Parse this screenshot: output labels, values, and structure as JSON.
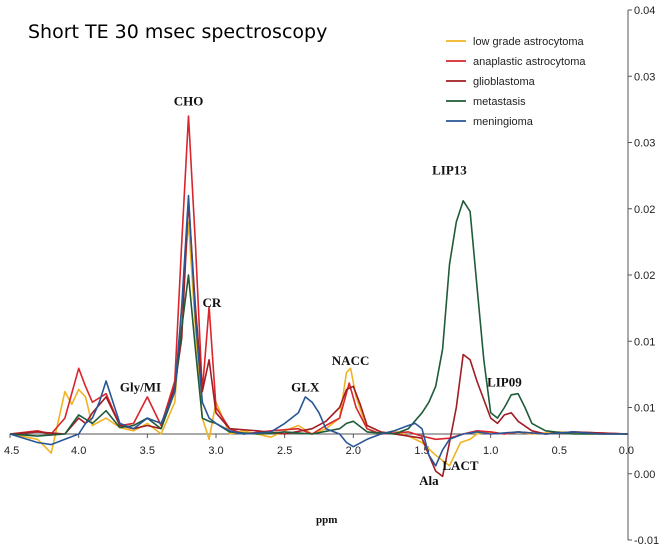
{
  "chart_data": {
    "type": "line",
    "title": "Short TE 30 msec spectroscopy",
    "xlabel": "ppm",
    "ylabel": "",
    "x_reversed": true,
    "xlim": [
      4.5,
      0.0
    ],
    "ylim": [
      -0.01,
      0.04
    ],
    "x_tick_labels": [
      "4.5",
      "4.0",
      "3.5",
      "3.0",
      "2.5",
      "2.0",
      "1.5",
      "1.0",
      "0.5",
      "0.0"
    ],
    "y_tick_labels": [
      "0.04",
      "0.03",
      "0.03",
      "0.02",
      "0.02",
      "0.01",
      "0.01",
      "0.00",
      "-0.01"
    ],
    "legend_position": "top-right",
    "grid": false,
    "peak_labels": [
      {
        "text": "CHO",
        "ppm": 3.2,
        "value": 0.031
      },
      {
        "text": "CR",
        "ppm": 3.03,
        "value": 0.012
      },
      {
        "text": "Gly/MI",
        "ppm": 3.55,
        "value": 0.004
      },
      {
        "text": "GLX",
        "ppm": 2.35,
        "value": 0.004
      },
      {
        "text": "NACC",
        "ppm": 2.02,
        "value": 0.0065
      },
      {
        "text": "LIP13",
        "ppm": 1.3,
        "value": 0.0245
      },
      {
        "text": "LIP09",
        "ppm": 0.9,
        "value": 0.0045
      },
      {
        "text": "Ala",
        "ppm": 1.45,
        "value": -0.0048
      },
      {
        "text": "LACT",
        "ppm": 1.22,
        "value": -0.0034
      }
    ],
    "series": [
      {
        "name": "low grade astrocytoma",
        "color": "#f0b323",
        "x": [
          4.5,
          4.3,
          4.2,
          4.1,
          4.05,
          4.0,
          3.95,
          3.9,
          3.8,
          3.7,
          3.6,
          3.5,
          3.4,
          3.3,
          3.25,
          3.2,
          3.15,
          3.1,
          3.05,
          3.0,
          2.9,
          2.8,
          2.6,
          2.5,
          2.4,
          2.3,
          2.2,
          2.1,
          2.05,
          2.02,
          1.98,
          1.9,
          1.8,
          1.7,
          1.6,
          1.5,
          1.4,
          1.3,
          1.22,
          1.15,
          1.1,
          1.0,
          0.9,
          0.8,
          0.7,
          0.5,
          0.3,
          0.0
        ],
        "y": [
          0.0,
          -0.0005,
          -0.0018,
          0.004,
          0.0028,
          0.0042,
          0.0035,
          0.0008,
          0.0015,
          0.0006,
          0.0003,
          0.001,
          0.0,
          0.003,
          0.012,
          0.02,
          0.01,
          0.0015,
          -0.0005,
          0.003,
          0.0,
          0.0003,
          -0.0003,
          0.0003,
          0.0008,
          0.0,
          0.0005,
          0.0015,
          0.0058,
          0.0062,
          0.0035,
          0.0005,
          0.0,
          0.0003,
          -0.0002,
          -0.0008,
          -0.002,
          -0.003,
          -0.0008,
          -0.0005,
          0.0,
          0.0002,
          0.0,
          0.0002,
          0.0,
          0.0002,
          0.0,
          0.0
        ]
      },
      {
        "name": "anaplastic astrocytoma",
        "color": "#d8262c",
        "x": [
          4.5,
          4.3,
          4.2,
          4.1,
          4.0,
          3.95,
          3.9,
          3.8,
          3.7,
          3.6,
          3.5,
          3.4,
          3.3,
          3.25,
          3.2,
          3.15,
          3.1,
          3.05,
          3.0,
          2.9,
          2.8,
          2.6,
          2.4,
          2.3,
          2.2,
          2.1,
          2.03,
          1.98,
          1.9,
          1.8,
          1.6,
          1.5,
          1.4,
          1.3,
          1.25,
          1.2,
          1.1,
          1.0,
          0.9,
          0.8,
          0.6,
          0.4,
          0.0
        ],
        "y": [
          0.0,
          0.0003,
          0.0,
          0.0015,
          0.0062,
          0.0045,
          0.003,
          0.0038,
          0.0008,
          0.001,
          0.0035,
          0.0008,
          0.005,
          0.018,
          0.03,
          0.018,
          0.004,
          0.012,
          0.0025,
          0.0005,
          0.0,
          0.0003,
          0.0005,
          0.0,
          0.0008,
          0.0015,
          0.0048,
          0.0025,
          0.0005,
          0.0,
          0.0002,
          -0.0002,
          -0.0005,
          -0.0004,
          -0.0002,
          0.0,
          0.0003,
          0.0002,
          0.0,
          0.0002,
          0.0,
          0.0002,
          0.0
        ]
      },
      {
        "name": "glioblastoma",
        "color": "#a11d23",
        "x": [
          4.5,
          4.3,
          4.1,
          4.0,
          3.95,
          3.9,
          3.8,
          3.7,
          3.6,
          3.5,
          3.4,
          3.3,
          3.25,
          3.2,
          3.15,
          3.1,
          3.05,
          3.0,
          2.9,
          2.7,
          2.5,
          2.3,
          2.2,
          2.1,
          2.05,
          2.0,
          1.95,
          1.9,
          1.8,
          1.6,
          1.5,
          1.45,
          1.4,
          1.35,
          1.3,
          1.25,
          1.2,
          1.15,
          1.1,
          1.0,
          0.95,
          0.9,
          0.85,
          0.8,
          0.7,
          0.6,
          0.4,
          0.0
        ],
        "y": [
          0.0,
          0.0002,
          0.0,
          0.0015,
          0.001,
          0.002,
          0.0035,
          0.0008,
          0.0005,
          0.0008,
          0.0005,
          0.0045,
          0.009,
          0.022,
          0.012,
          0.004,
          0.007,
          0.002,
          0.0005,
          0.0003,
          0.0,
          0.0005,
          0.0012,
          0.0025,
          0.0042,
          0.0045,
          0.0028,
          0.0008,
          0.0002,
          -0.0002,
          -0.0004,
          -0.002,
          -0.0035,
          -0.004,
          -0.0008,
          0.0025,
          0.0075,
          0.007,
          0.005,
          0.0015,
          0.001,
          0.0018,
          0.002,
          0.0012,
          0.0003,
          0.0,
          0.0002,
          0.0
        ]
      },
      {
        "name": "metastasis",
        "color": "#1e5c3a",
        "x": [
          4.5,
          4.3,
          4.1,
          4.0,
          3.9,
          3.8,
          3.7,
          3.6,
          3.5,
          3.4,
          3.3,
          3.25,
          3.2,
          3.15,
          3.1,
          3.05,
          3.0,
          2.9,
          2.7,
          2.5,
          2.3,
          2.1,
          2.05,
          2.0,
          1.9,
          1.7,
          1.6,
          1.5,
          1.45,
          1.4,
          1.35,
          1.3,
          1.25,
          1.2,
          1.15,
          1.1,
          1.05,
          1.0,
          0.95,
          0.9,
          0.85,
          0.8,
          0.75,
          0.7,
          0.6,
          0.4,
          0.0
        ],
        "y": [
          0.0,
          -0.0002,
          0.0,
          0.0018,
          0.001,
          0.0022,
          0.0006,
          0.0008,
          0.0015,
          0.0005,
          0.004,
          0.01,
          0.015,
          0.008,
          0.0015,
          0.0012,
          0.001,
          0.0002,
          0.0,
          0.0002,
          0.0,
          0.0005,
          0.001,
          0.0012,
          0.0002,
          0.0,
          0.0005,
          0.002,
          0.003,
          0.0045,
          0.008,
          0.016,
          0.02,
          0.022,
          0.021,
          0.014,
          0.007,
          0.002,
          0.0015,
          0.0025,
          0.0037,
          0.0038,
          0.0025,
          0.001,
          0.0003,
          0.0,
          0.0
        ]
      },
      {
        "name": "meningioma",
        "color": "#2a5597",
        "x": [
          4.5,
          4.3,
          4.2,
          4.1,
          4.0,
          3.95,
          3.9,
          3.85,
          3.8,
          3.7,
          3.6,
          3.5,
          3.4,
          3.3,
          3.25,
          3.2,
          3.15,
          3.1,
          3.05,
          3.0,
          2.9,
          2.8,
          2.6,
          2.5,
          2.4,
          2.35,
          2.3,
          2.25,
          2.2,
          2.1,
          2.05,
          2.0,
          1.9,
          1.8,
          1.7,
          1.6,
          1.55,
          1.5,
          1.45,
          1.4,
          1.35,
          1.3,
          1.2,
          1.1,
          1.0,
          0.8,
          0.6,
          0.4,
          0.2,
          0.0
        ],
        "y": [
          0.0,
          -0.0008,
          -0.001,
          -0.0005,
          0.0,
          0.001,
          0.0015,
          0.003,
          0.005,
          0.001,
          0.0005,
          0.0015,
          0.001,
          0.004,
          0.012,
          0.0225,
          0.011,
          0.003,
          0.0015,
          0.001,
          0.0003,
          0.0,
          0.0002,
          0.001,
          0.002,
          0.0035,
          0.003,
          0.002,
          0.0005,
          0.0,
          -0.0008,
          -0.0012,
          -0.0005,
          0.0,
          0.0003,
          0.0008,
          0.001,
          0.0005,
          -0.002,
          -0.003,
          -0.0015,
          -0.0005,
          0.0,
          0.0002,
          0.0,
          0.0002,
          0.0,
          0.0002,
          0.0,
          0.0
        ]
      }
    ]
  }
}
